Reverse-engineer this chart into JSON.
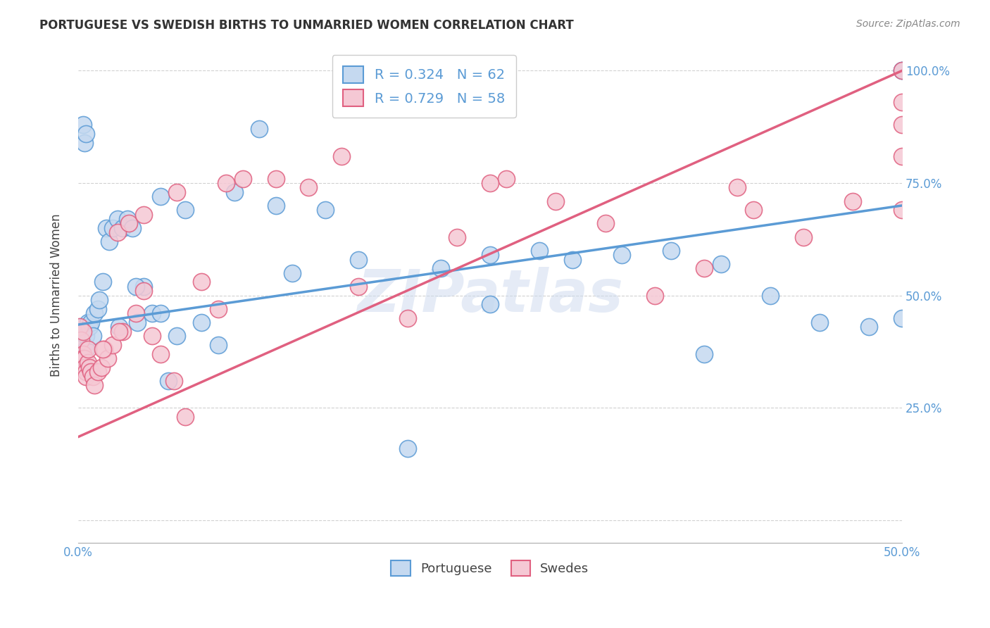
{
  "title": "PORTUGUESE VS SWEDISH BIRTHS TO UNMARRIED WOMEN CORRELATION CHART",
  "source": "Source: ZipAtlas.com",
  "ylabel": "Births to Unmarried Women",
  "x_min": 0.0,
  "x_max": 0.5,
  "y_min": 0.0,
  "y_max": 1.05,
  "blue_R": 0.324,
  "blue_N": 62,
  "pink_R": 0.729,
  "pink_N": 58,
  "blue_color": "#c5d9f0",
  "pink_color": "#f5c8d4",
  "blue_line_color": "#5b9bd5",
  "pink_line_color": "#e06080",
  "watermark": "ZIPatlas",
  "blue_line_x0": 0.0,
  "blue_line_y0": 0.435,
  "blue_line_x1": 0.5,
  "blue_line_y1": 0.7,
  "pink_line_x0": 0.0,
  "pink_line_y0": 0.185,
  "pink_line_x1": 0.5,
  "pink_line_y1": 1.0,
  "blue_scatter_x": [
    0.001,
    0.001,
    0.002,
    0.002,
    0.003,
    0.003,
    0.004,
    0.004,
    0.005,
    0.005,
    0.006,
    0.007,
    0.008,
    0.009,
    0.01,
    0.012,
    0.013,
    0.015,
    0.017,
    0.019,
    0.021,
    0.024,
    0.027,
    0.03,
    0.033,
    0.036,
    0.04,
    0.045,
    0.05,
    0.055,
    0.06,
    0.065,
    0.075,
    0.085,
    0.095,
    0.11,
    0.13,
    0.15,
    0.17,
    0.2,
    0.22,
    0.25,
    0.28,
    0.3,
    0.33,
    0.36,
    0.39,
    0.42,
    0.45,
    0.48,
    0.5,
    0.5,
    0.003,
    0.004,
    0.005,
    0.025,
    0.035,
    0.05,
    0.12,
    0.25,
    0.38,
    0.5
  ],
  "blue_scatter_y": [
    0.4,
    0.38,
    0.43,
    0.37,
    0.42,
    0.36,
    0.42,
    0.39,
    0.41,
    0.38,
    0.44,
    0.43,
    0.44,
    0.41,
    0.46,
    0.47,
    0.49,
    0.53,
    0.65,
    0.62,
    0.65,
    0.67,
    0.65,
    0.67,
    0.65,
    0.44,
    0.52,
    0.46,
    0.46,
    0.31,
    0.41,
    0.69,
    0.44,
    0.39,
    0.73,
    0.87,
    0.55,
    0.69,
    0.58,
    0.16,
    0.56,
    0.48,
    0.6,
    0.58,
    0.59,
    0.6,
    0.57,
    0.5,
    0.44,
    0.43,
    0.45,
    1.0,
    0.88,
    0.84,
    0.86,
    0.43,
    0.52,
    0.72,
    0.7,
    0.59,
    0.37,
    1.0
  ],
  "pink_scatter_x": [
    0.001,
    0.002,
    0.003,
    0.003,
    0.004,
    0.004,
    0.005,
    0.005,
    0.006,
    0.007,
    0.008,
    0.009,
    0.01,
    0.012,
    0.014,
    0.016,
    0.018,
    0.021,
    0.024,
    0.027,
    0.031,
    0.035,
    0.04,
    0.045,
    0.05,
    0.058,
    0.065,
    0.075,
    0.085,
    0.1,
    0.12,
    0.14,
    0.17,
    0.2,
    0.23,
    0.26,
    0.29,
    0.32,
    0.35,
    0.38,
    0.41,
    0.44,
    0.47,
    0.5,
    0.5,
    0.5,
    0.5,
    0.003,
    0.006,
    0.015,
    0.025,
    0.04,
    0.06,
    0.09,
    0.16,
    0.25,
    0.4,
    0.5
  ],
  "pink_scatter_y": [
    0.43,
    0.4,
    0.37,
    0.36,
    0.36,
    0.34,
    0.33,
    0.32,
    0.35,
    0.34,
    0.33,
    0.32,
    0.3,
    0.33,
    0.34,
    0.38,
    0.36,
    0.39,
    0.64,
    0.42,
    0.66,
    0.46,
    0.51,
    0.41,
    0.37,
    0.31,
    0.23,
    0.53,
    0.47,
    0.76,
    0.76,
    0.74,
    0.52,
    0.45,
    0.63,
    0.76,
    0.71,
    0.66,
    0.5,
    0.56,
    0.69,
    0.63,
    0.71,
    0.69,
    0.81,
    1.0,
    0.93,
    0.42,
    0.38,
    0.38,
    0.42,
    0.68,
    0.73,
    0.75,
    0.81,
    0.75,
    0.74,
    0.88
  ]
}
